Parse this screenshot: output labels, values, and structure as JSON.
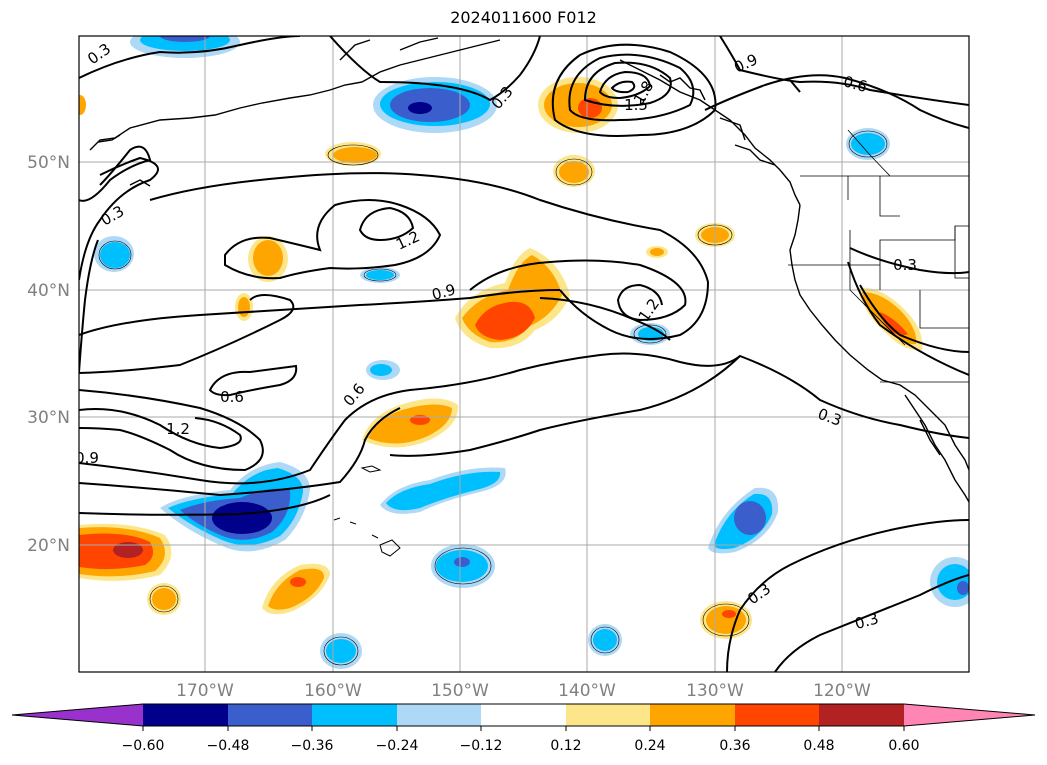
{
  "title": "2024011600 F012",
  "map": {
    "lat_labels": [
      "50°N",
      "40°N",
      "30°N",
      "20°N"
    ],
    "lon_labels": [
      "170°W",
      "160°W",
      "150°W",
      "140°W",
      "130°W",
      "120°W"
    ],
    "contour_labels": [
      "0.3",
      "0.3",
      "0.3",
      "0.3",
      "0.3",
      "0.3",
      "0.3",
      "0.6",
      "0.6",
      "0.6",
      "0.9",
      "0.9",
      "0.9",
      "1.2",
      "1.2",
      "1.2",
      "1.5",
      "1.8"
    ]
  },
  "colorbar": {
    "ticks": [
      "−0.60",
      "−0.48",
      "−0.36",
      "−0.24",
      "−0.12",
      "0.12",
      "0.24",
      "0.36",
      "0.48",
      "0.60"
    ],
    "colors": [
      "#9932cc",
      "#00008b",
      "#3a5fcd",
      "#00bfff",
      "#add8f6",
      "#ffffff",
      "#fde68a",
      "#ffa500",
      "#ff4500",
      "#b22222",
      "#ff85b4"
    ]
  }
}
